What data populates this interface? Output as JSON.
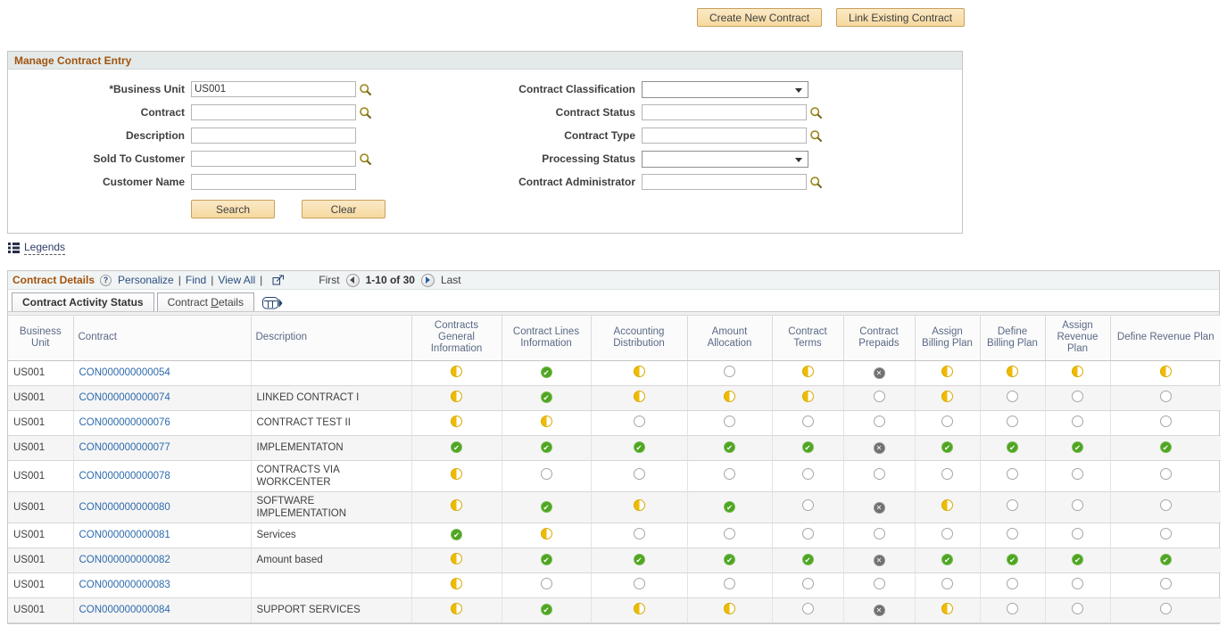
{
  "top_actions": {
    "create_new_contract": "Create New Contract",
    "link_existing_contract": "Link Existing Contract"
  },
  "search_form": {
    "title": "Manage Contract Entry",
    "left_fields": [
      {
        "label": "*Business Unit",
        "value": "US001"
      },
      {
        "label": "Contract",
        "value": ""
      },
      {
        "label": "Description",
        "value": ""
      },
      {
        "label": "Sold To Customer",
        "value": ""
      },
      {
        "label": "Customer Name",
        "value": ""
      }
    ],
    "right_fields": [
      {
        "label": "Contract Classification",
        "value": ""
      },
      {
        "label": "Contract Status",
        "value": ""
      },
      {
        "label": "Contract Type",
        "value": ""
      },
      {
        "label": "Processing Status",
        "value": ""
      },
      {
        "label": "Contract Administrator",
        "value": ""
      }
    ],
    "search_button": "Search",
    "clear_button": "Clear"
  },
  "legends_link": "Legends",
  "grid": {
    "title": "Contract Details",
    "help_icon_glyph": "?",
    "toolbar": {
      "personalize": "Personalize",
      "find": "Find",
      "view_all": "View All",
      "separator": "|"
    },
    "pagination": {
      "first": "First",
      "range": "1-10 of 30",
      "last": "Last"
    },
    "tabs": {
      "active": "Contract Activity Status",
      "inactive_prefix": "Contract ",
      "inactive_accesskey": "D",
      "inactive_suffix": "etails"
    },
    "columns": [
      "Business Unit",
      "Contract",
      "Description",
      "Contracts General Information",
      "Contract Lines Information",
      "Accounting Distribution",
      "Amount Allocation",
      "Contract Terms",
      "Contract Prepaids",
      "Assign Billing Plan",
      "Define Billing Plan",
      "Assign Revenue Plan",
      "Define Revenue Plan"
    ],
    "status_icons": {
      "p": "status-in-progress-icon",
      "c": "status-completed-icon",
      "n": "status-not-started-icon",
      "x": "status-not-available-icon"
    },
    "rows": [
      {
        "bu": "US001",
        "contract": "CON000000000054",
        "description": "",
        "statuses": [
          "p",
          "c",
          "p",
          "n",
          "p",
          "x",
          "p",
          "p",
          "p",
          "p"
        ]
      },
      {
        "bu": "US001",
        "contract": "CON000000000074",
        "description": "LINKED CONTRACT I",
        "statuses": [
          "p",
          "c",
          "p",
          "p",
          "p",
          "n",
          "p",
          "n",
          "n",
          "n"
        ]
      },
      {
        "bu": "US001",
        "contract": "CON000000000076",
        "description": "CONTRACT TEST II",
        "statuses": [
          "p",
          "p",
          "n",
          "n",
          "n",
          "n",
          "n",
          "n",
          "n",
          "n"
        ]
      },
      {
        "bu": "US001",
        "contract": "CON000000000077",
        "description": "IMPLEMENTATON",
        "statuses": [
          "c",
          "c",
          "c",
          "c",
          "c",
          "x",
          "c",
          "c",
          "c",
          "c"
        ]
      },
      {
        "bu": "US001",
        "contract": "CON000000000078",
        "description": "CONTRACTS VIA WORKCENTER",
        "statuses": [
          "p",
          "n",
          "n",
          "n",
          "n",
          "n",
          "n",
          "n",
          "n",
          "n"
        ]
      },
      {
        "bu": "US001",
        "contract": "CON000000000080",
        "description": "SOFTWARE IMPLEMENTATION",
        "statuses": [
          "p",
          "c",
          "p",
          "c",
          "n",
          "x",
          "p",
          "n",
          "n",
          "n"
        ]
      },
      {
        "bu": "US001",
        "contract": "CON000000000081",
        "description": "Services",
        "statuses": [
          "c",
          "p",
          "n",
          "n",
          "n",
          "n",
          "n",
          "n",
          "n",
          "n"
        ]
      },
      {
        "bu": "US001",
        "contract": "CON000000000082",
        "description": "Amount based",
        "statuses": [
          "p",
          "c",
          "c",
          "c",
          "c",
          "x",
          "c",
          "c",
          "c",
          "c"
        ]
      },
      {
        "bu": "US001",
        "contract": "CON000000000083",
        "description": "",
        "statuses": [
          "p",
          "n",
          "n",
          "n",
          "n",
          "n",
          "n",
          "n",
          "n",
          "n"
        ]
      },
      {
        "bu": "US001",
        "contract": "CON000000000084",
        "description": "SUPPORT SERVICES",
        "statuses": [
          "p",
          "c",
          "p",
          "p",
          "n",
          "x",
          "p",
          "n",
          "n",
          "n"
        ]
      }
    ]
  },
  "colors": {
    "section_title": "#A3540E",
    "contract_link": "#2D6BAD",
    "toolbar_link": "#2A4E82",
    "grid_header_text": "#5A6985",
    "button_bg": "#F6D99E",
    "status_yellow": "#EFBB00",
    "status_green": "#4FA522",
    "status_gray": "#707070"
  }
}
